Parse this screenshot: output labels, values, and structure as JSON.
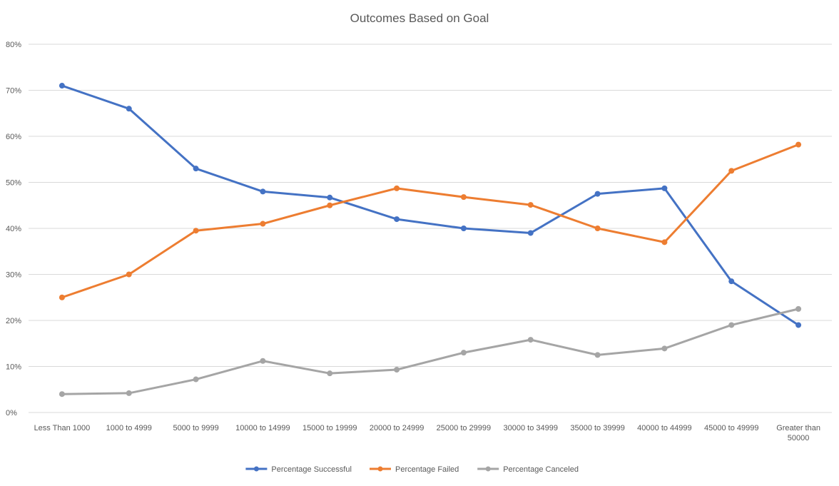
{
  "chart_data": {
    "type": "line",
    "title": "Outcomes Based on Goal",
    "xlabel": "",
    "ylabel": "",
    "categories": [
      [
        "Less Than 1000"
      ],
      [
        "1000 to 4999"
      ],
      [
        "5000 to 9999"
      ],
      [
        "10000 to 14999"
      ],
      [
        "15000 to 19999"
      ],
      [
        "20000 to 24999"
      ],
      [
        "25000 to 29999"
      ],
      [
        "30000 to 34999"
      ],
      [
        "35000 to 39999"
      ],
      [
        "40000 to 44999"
      ],
      [
        "45000 to 49999"
      ],
      [
        "Greater than",
        "50000"
      ]
    ],
    "ylim": [
      0,
      0.8
    ],
    "ytick_step": 0.1,
    "ytick_labels": [
      "0%",
      "10%",
      "20%",
      "30%",
      "40%",
      "50%",
      "60%",
      "70%",
      "80%"
    ],
    "grid": true,
    "legend_position": "bottom",
    "series": [
      {
        "name": "Percentage Successful",
        "color": "#4472c4",
        "values": [
          0.71,
          0.66,
          0.53,
          0.48,
          0.467,
          0.42,
          0.4,
          0.39,
          0.475,
          0.487,
          0.285,
          0.19
        ]
      },
      {
        "name": "Percentage Failed",
        "color": "#ed7d31",
        "values": [
          0.25,
          0.3,
          0.395,
          0.41,
          0.45,
          0.487,
          0.468,
          0.451,
          0.4,
          0.37,
          0.525,
          0.582
        ]
      },
      {
        "name": "Percentage Canceled",
        "color": "#a5a5a5",
        "values": [
          0.04,
          0.042,
          0.072,
          0.112,
          0.085,
          0.093,
          0.13,
          0.158,
          0.125,
          0.139,
          0.19,
          0.225
        ]
      }
    ]
  }
}
